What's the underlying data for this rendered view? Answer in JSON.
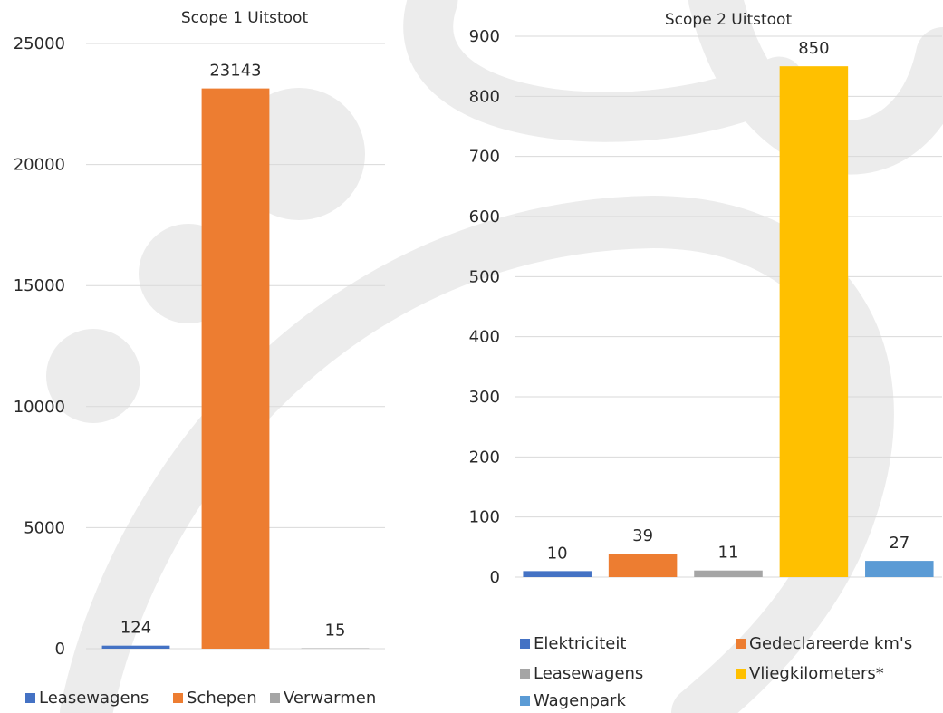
{
  "colors": {
    "blue": "#4472c4",
    "orange": "#ed7d31",
    "gray": "#a5a5a5",
    "yellow": "#ffc000",
    "lightblue": "#5b9bd5",
    "watermark": "#ececec"
  },
  "chart_data": [
    {
      "type": "bar",
      "title": "Scope 1 Uitstoot",
      "categories": [
        "Leasewagens",
        "Schepen",
        "Verwarmen"
      ],
      "values": [
        124,
        23143,
        15
      ],
      "data_labels": [
        "124",
        "23143",
        "15"
      ],
      "colors": [
        "#4472c4",
        "#ed7d31",
        "#a5a5a5"
      ],
      "ylim": [
        0,
        25000
      ],
      "yticks": [
        "0",
        "5000",
        "10000",
        "15000",
        "20000",
        "25000"
      ],
      "grid": true,
      "legend": "bottom"
    },
    {
      "type": "bar",
      "title": "Scope 2 Uitstoot",
      "categories": [
        "Elektriciteit",
        "Gedeclareerde km's",
        "Leasewagens",
        "Vliegkilometers*",
        "Wagenpark"
      ],
      "values": [
        10,
        39,
        11,
        850,
        27
      ],
      "data_labels": [
        "10",
        "39",
        "11",
        "850",
        "27"
      ],
      "colors": [
        "#4472c4",
        "#ed7d31",
        "#a5a5a5",
        "#ffc000",
        "#5b9bd5"
      ],
      "ylim": [
        0,
        900
      ],
      "yticks": [
        "0",
        "100",
        "200",
        "300",
        "400",
        "500",
        "600",
        "700",
        "800",
        "900"
      ],
      "grid": true,
      "legend": "bottom"
    }
  ]
}
